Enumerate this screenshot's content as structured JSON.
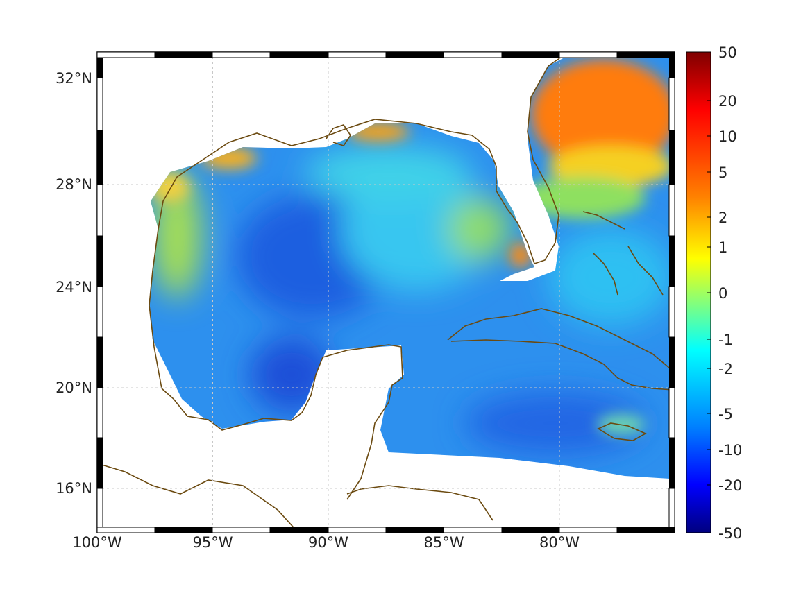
{
  "map": {
    "lon_range": [
      -100,
      -75
    ],
    "lat_range": [
      14.2,
      33
    ],
    "graticule": "dashed"
  },
  "axes": {
    "x_ticks": [
      {
        "value": -100,
        "label": "100°W"
      },
      {
        "value": -95,
        "label": "95°W"
      },
      {
        "value": -90,
        "label": "90°W"
      },
      {
        "value": -85,
        "label": "85°W"
      },
      {
        "value": -80,
        "label": "80°W"
      }
    ],
    "y_ticks": [
      {
        "value": 32,
        "label": "32°N"
      },
      {
        "value": 28,
        "label": "28°N"
      },
      {
        "value": 24,
        "label": "24°N"
      },
      {
        "value": 20,
        "label": "20°N"
      },
      {
        "value": 16,
        "label": "16°N"
      }
    ]
  },
  "colorbar": {
    "labels": [
      "50",
      "20",
      "10",
      "5",
      "2",
      "1",
      "0",
      "-1",
      "-2",
      "-5",
      "-10",
      "-20",
      "-50"
    ],
    "colors": [
      "#7f0000",
      "#ff0000",
      "#ff8000",
      "#ffff00",
      "#00ffff",
      "#0080ff",
      "#0000ff",
      "#00007f"
    ]
  },
  "colors": {
    "coast": "#6b4a10",
    "deep_blue": "#1f5fe0",
    "mid_blue": "#2e8ef0",
    "cyan": "#31c4f2",
    "green_yellow": "#b8e63a",
    "orange": "#ff8a10"
  }
}
